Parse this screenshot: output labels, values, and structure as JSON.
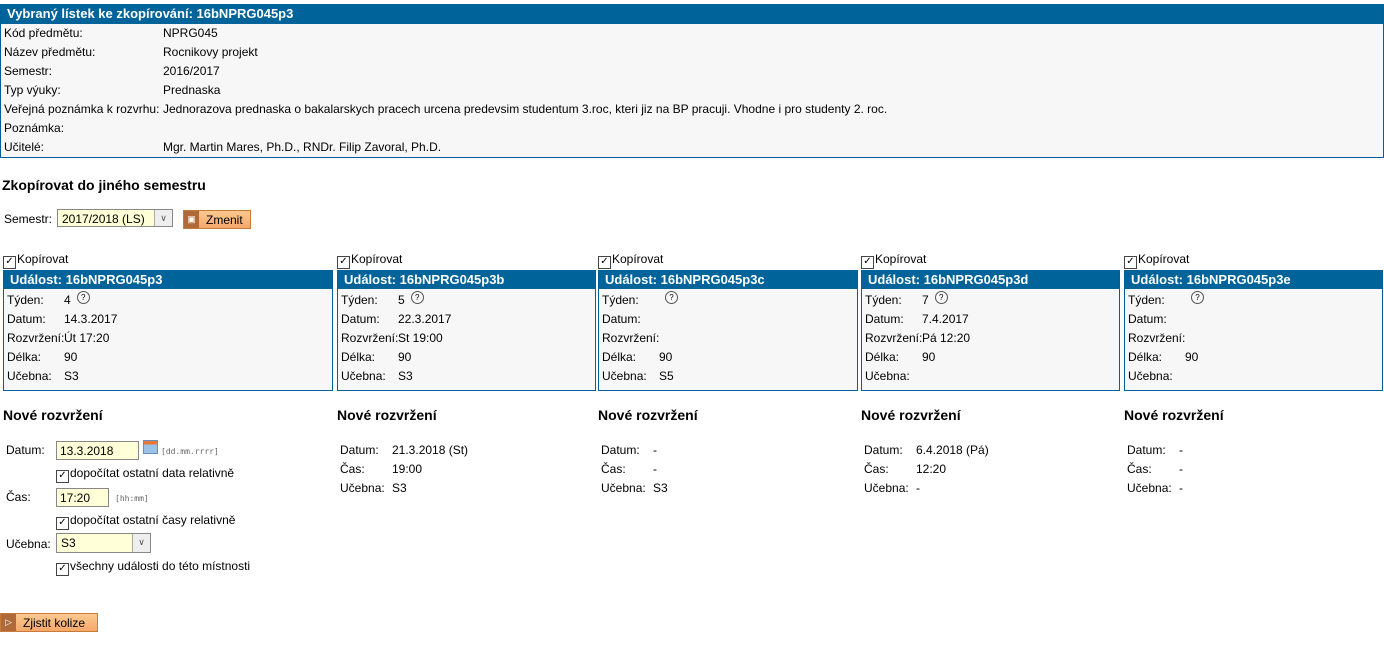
{
  "header": {
    "title": "Vybraný lístek ke zkopírování: 16bNPRG045p3",
    "rows": [
      {
        "k": "Kód předmětu:",
        "v": "NPRG045"
      },
      {
        "k": "Název předmětu:",
        "v": "Rocnikovy projekt"
      },
      {
        "k": "Semestr:",
        "v": "2016/2017"
      },
      {
        "k": "Typ výuky:",
        "v": "Prednaska"
      },
      {
        "k": "Veřejná poznámka k rozvrhu:",
        "v": "Jednorazova prednaska o bakalarskych pracech urcena predevsim studentum 3.roc, kteri jiz na BP pracuji. Vhodne i pro studenty 2. roc."
      },
      {
        "k": "Poznámka:",
        "v": ""
      },
      {
        "k": "Učitelé:",
        "v": "Mgr. Martin Mares, Ph.D., RNDr. Filip Zavoral, Ph.D."
      }
    ]
  },
  "copy": {
    "title": "Zkopírovat do jiného semestru",
    "semestr_label": "Semestr:",
    "semestr_value": "2017/2018 (LS)",
    "change_button": "Zmenit"
  },
  "labels": {
    "copy": "Kopírovat",
    "week": "Týden:",
    "date": "Datum:",
    "layout": "Rozvržení:",
    "length": "Délka:",
    "room": "Učebna:",
    "new_layout": "Nové rozvržení",
    "time": "Čas:"
  },
  "events": [
    {
      "title": "Událost: 16bNPRG045p3",
      "week": "4",
      "date": "14.3.2017",
      "layout": "Út 17:20",
      "length": "90",
      "room": "S3"
    },
    {
      "title": "Událost: 16bNPRG045p3b",
      "week": "5",
      "date": "22.3.2017",
      "layout": "St 19:00",
      "length": "90",
      "room": "S3",
      "new": {
        "date": "21.3.2018 (St)",
        "time": "19:00",
        "room": "S3"
      }
    },
    {
      "title": "Událost: 16bNPRG045p3c",
      "week": "",
      "date": "",
      "layout": "",
      "length": "90",
      "room": "S5",
      "new": {
        "date": "-",
        "time": "-",
        "room": "S3"
      }
    },
    {
      "title": "Událost: 16bNPRG045p3d",
      "week": "7",
      "date": "7.4.2017",
      "layout": "Pá 12:20",
      "length": "90",
      "room": "",
      "new": {
        "date": "6.4.2018 (Pá)",
        "time": "12:20",
        "room": "-"
      }
    },
    {
      "title": "Událost: 16bNPRG045p3e",
      "week": "",
      "date": "",
      "layout": "",
      "length": "90",
      "room": "",
      "new": {
        "date": "-",
        "time": "-",
        "room": "-"
      }
    }
  ],
  "form": {
    "date_value": "13.3.2018",
    "date_hint": "[dd.mm.rrrr]",
    "relative_dates": "dopočítat ostatní data relativně",
    "time_value": "17:20",
    "time_hint": "[hh:mm]",
    "relative_times": "dopočítat ostatní časy relativně",
    "room_value": "S3",
    "all_events_room": "všechny události do této místnosti"
  },
  "collisions_button": "Zjistit kolize"
}
